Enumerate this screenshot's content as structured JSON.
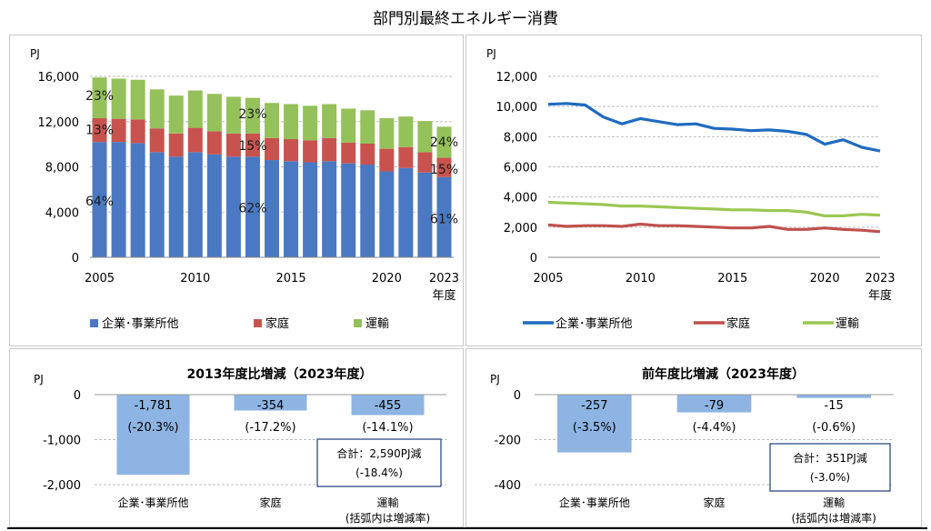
{
  "title": "部門別最終エネルギー消費",
  "chart_data": [
    {
      "type": "bar",
      "stacked": true,
      "unit": "PJ",
      "x": [
        2005,
        2006,
        2007,
        2008,
        2009,
        2010,
        2011,
        2012,
        2013,
        2014,
        2015,
        2016,
        2017,
        2018,
        2019,
        2020,
        2021,
        2022,
        2023
      ],
      "xticks": [
        "2005",
        "2010",
        "2015",
        "2020",
        "2023"
      ],
      "x_suffix": "年度",
      "ylim": [
        0,
        16000
      ],
      "yticks": [
        "0",
        "4,000",
        "8,000",
        "12,000",
        "16,000"
      ],
      "grid": true,
      "legend_position": "bottom",
      "series": [
        {
          "name": "企業･事業所他",
          "color": "#4a78c2",
          "values": [
            10200,
            10200,
            10100,
            9300,
            8900,
            9300,
            9100,
            8900,
            8900,
            8600,
            8500,
            8400,
            8500,
            8300,
            8200,
            7600,
            7900,
            7500,
            7100
          ]
        },
        {
          "name": "家庭",
          "color": "#c8534e",
          "values": [
            2100,
            2050,
            2100,
            2100,
            2050,
            2150,
            2050,
            2050,
            2050,
            1950,
            1950,
            1950,
            2050,
            1850,
            1850,
            2000,
            1850,
            1800,
            1700
          ]
        },
        {
          "name": "運輸",
          "color": "#94c159",
          "values": [
            3600,
            3550,
            3500,
            3450,
            3350,
            3300,
            3300,
            3250,
            3150,
            3100,
            3100,
            3050,
            3000,
            3000,
            2950,
            2700,
            2700,
            2750,
            2750
          ]
        }
      ],
      "annotations": [
        {
          "text": "23%",
          "x": 2005,
          "y": 14300
        },
        {
          "text": "13%",
          "x": 2005,
          "y": 11300
        },
        {
          "text": "64%",
          "x": 2005,
          "y": 5000
        },
        {
          "text": "23%",
          "x": 2013,
          "y": 12700
        },
        {
          "text": "15%",
          "x": 2013,
          "y": 9900
        },
        {
          "text": "62%",
          "x": 2013,
          "y": 4400
        },
        {
          "text": "24%",
          "x": 2023,
          "y": 10200
        },
        {
          "text": "15%",
          "x": 2023,
          "y": 7800
        },
        {
          "text": "61%",
          "x": 2023,
          "y": 3400
        }
      ]
    },
    {
      "type": "line",
      "unit": "PJ",
      "x": [
        2005,
        2006,
        2007,
        2008,
        2009,
        2010,
        2011,
        2012,
        2013,
        2014,
        2015,
        2016,
        2017,
        2018,
        2019,
        2020,
        2021,
        2022,
        2023
      ],
      "xticks": [
        "2005",
        "2010",
        "2015",
        "2020",
        "2023"
      ],
      "x_suffix": "年度",
      "ylim": [
        0,
        12000
      ],
      "yticks": [
        "0",
        "2,000",
        "4,000",
        "6,000",
        "8,000",
        "10,000",
        "12,000"
      ],
      "grid": true,
      "legend_position": "bottom",
      "series": [
        {
          "name": "企業･事業所他",
          "color": "#1f6bbf",
          "values": [
            10150,
            10200,
            10100,
            9300,
            8850,
            9200,
            9000,
            8800,
            8850,
            8550,
            8500,
            8400,
            8450,
            8350,
            8150,
            7500,
            7800,
            7300,
            7050
          ]
        },
        {
          "name": "家庭",
          "color": "#c0504d",
          "values": [
            2150,
            2050,
            2100,
            2100,
            2050,
            2200,
            2100,
            2100,
            2050,
            2000,
            1950,
            1950,
            2050,
            1850,
            1850,
            1950,
            1850,
            1800,
            1700
          ]
        },
        {
          "name": "運輸",
          "color": "#9bc753",
          "values": [
            3650,
            3600,
            3550,
            3500,
            3400,
            3400,
            3350,
            3300,
            3250,
            3200,
            3150,
            3150,
            3100,
            3100,
            3000,
            2750,
            2750,
            2850,
            2800
          ]
        }
      ]
    },
    {
      "type": "bar",
      "title": "2013年度比増減（2023年度）",
      "unit": "PJ",
      "categories": [
        "企業･事業所他",
        "家庭",
        "運輸"
      ],
      "values": [
        -1781,
        -354,
        -455
      ],
      "value_labels": [
        "-1,781",
        "-354",
        "-455"
      ],
      "rate_labels": [
        "(-20.3%)",
        "(-17.2%)",
        "(-14.1%)"
      ],
      "ylim": [
        -2000,
        0
      ],
      "yticks": [
        "0",
        "-1,000",
        "-2,000"
      ],
      "category_note": "(括弧内は増減率)",
      "total_box": {
        "line1": "合計：2,590PJ減",
        "line2": "(-18.4%)"
      },
      "bar_color": "#8db4e2"
    },
    {
      "type": "bar",
      "title": "前年度比増減（2023年度）",
      "unit": "PJ",
      "categories": [
        "企業･事業所他",
        "家庭",
        "運輸"
      ],
      "values": [
        -257,
        -79,
        -15
      ],
      "value_labels": [
        "-257",
        "-79",
        "-15"
      ],
      "rate_labels": [
        "(-3.5%)",
        "(-4.4%)",
        "(-0.6%)"
      ],
      "ylim": [
        -400,
        0
      ],
      "yticks": [
        "0",
        "-200",
        "-400"
      ],
      "category_note": "(括弧内は増減率)",
      "total_box": {
        "line1": "合計：351PJ減",
        "line2": "(-3.0%)"
      },
      "bar_color": "#8db4e2"
    }
  ]
}
